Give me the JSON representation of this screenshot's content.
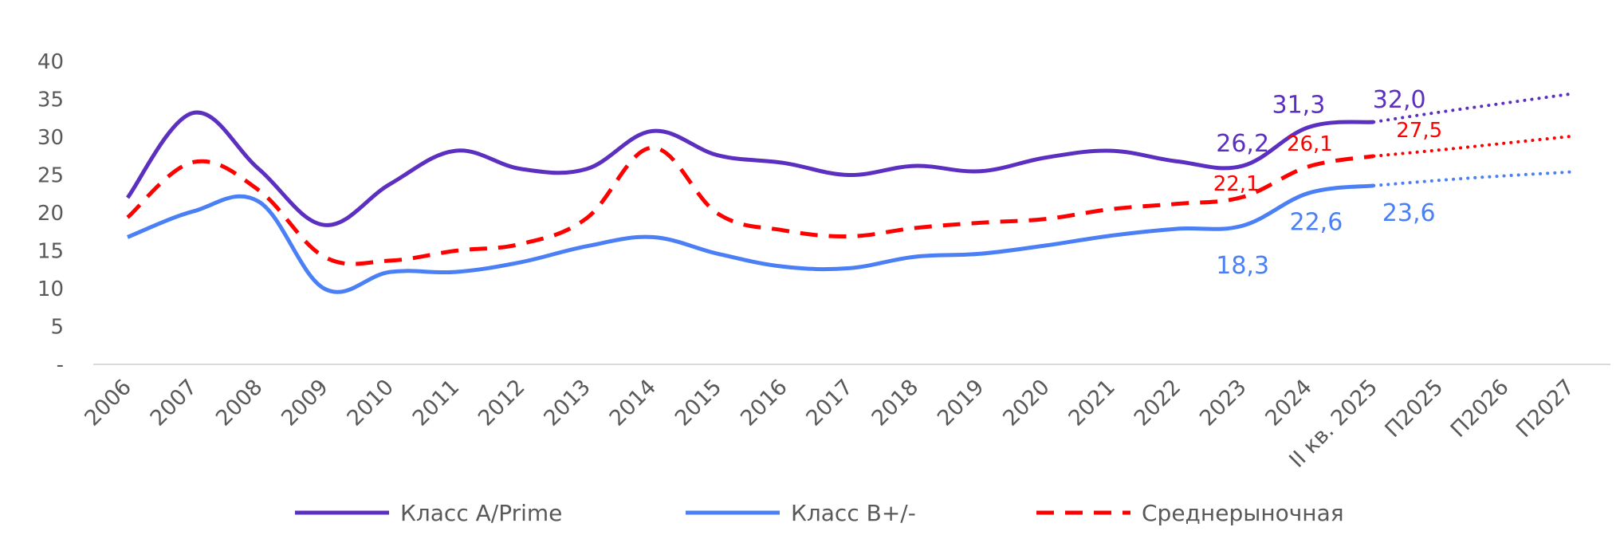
{
  "chart_data": {
    "type": "line",
    "categories": [
      "2006",
      "2007",
      "2008",
      "2009",
      "2010",
      "2011",
      "2012",
      "2013",
      "2014",
      "2015",
      "2016",
      "2017",
      "2018",
      "2019",
      "2020",
      "2021",
      "2022",
      "2023",
      "2024",
      "II кв. 2025",
      "П2025",
      "П2026",
      "П2027"
    ],
    "ylim": [
      0,
      40
    ],
    "yticks": [
      {
        "value": 0,
        "label": "-"
      },
      {
        "value": 5,
        "label": "5"
      },
      {
        "value": 10,
        "label": "10"
      },
      {
        "value": 15,
        "label": "15"
      },
      {
        "value": 20,
        "label": "20"
      },
      {
        "value": 25,
        "label": "25"
      },
      {
        "value": 30,
        "label": "30"
      },
      {
        "value": 35,
        "label": "35"
      },
      {
        "value": 40,
        "label": "40"
      }
    ],
    "grid": false,
    "legend_position": "bottom",
    "series": [
      {
        "name": "Класс A/Prime",
        "color": "#5b2fbf",
        "style": "solid",
        "values": [
          22.0,
          33.2,
          25.8,
          18.4,
          23.8,
          28.2,
          25.8,
          25.8,
          30.8,
          27.6,
          26.6,
          25.0,
          26.2,
          25.5,
          27.3,
          28.2,
          26.8,
          26.2,
          31.3,
          32.0,
          33.3,
          34.5,
          35.7
        ],
        "forecast_from_index": 19,
        "labels": [
          {
            "index": 17,
            "text": "26,2"
          },
          {
            "index": 18,
            "text": "31,3"
          },
          {
            "index": 19,
            "text": "32,0"
          }
        ]
      },
      {
        "name": "Класс B+/-",
        "color": "#4a7ff5",
        "style": "solid",
        "values": [
          16.8,
          20.2,
          21.5,
          10.0,
          12.2,
          12.2,
          13.5,
          15.6,
          16.8,
          14.6,
          12.9,
          12.7,
          14.2,
          14.6,
          15.7,
          17.0,
          17.9,
          18.3,
          22.6,
          23.6,
          24.3,
          24.9,
          25.4
        ],
        "forecast_from_index": 19,
        "labels": [
          {
            "index": 17,
            "text": "18,3"
          },
          {
            "index": 18,
            "text": "22,6"
          },
          {
            "index": 19,
            "text": "23,6"
          }
        ]
      },
      {
        "name": "Среднерыночная",
        "color": "#ff0000",
        "style": "dashed",
        "values": [
          19.4,
          26.7,
          23.0,
          14.2,
          13.7,
          15.0,
          15.9,
          19.3,
          28.6,
          19.9,
          17.7,
          16.9,
          18.0,
          18.7,
          19.2,
          20.5,
          21.2,
          22.1,
          26.1,
          27.5,
          28.3,
          29.2,
          30.1
        ],
        "forecast_from_index": 19,
        "labels": [
          {
            "index": 17,
            "text": "22,1"
          },
          {
            "index": 18,
            "text": "26,1"
          },
          {
            "index": 19,
            "text": "27,5"
          }
        ]
      }
    ]
  }
}
